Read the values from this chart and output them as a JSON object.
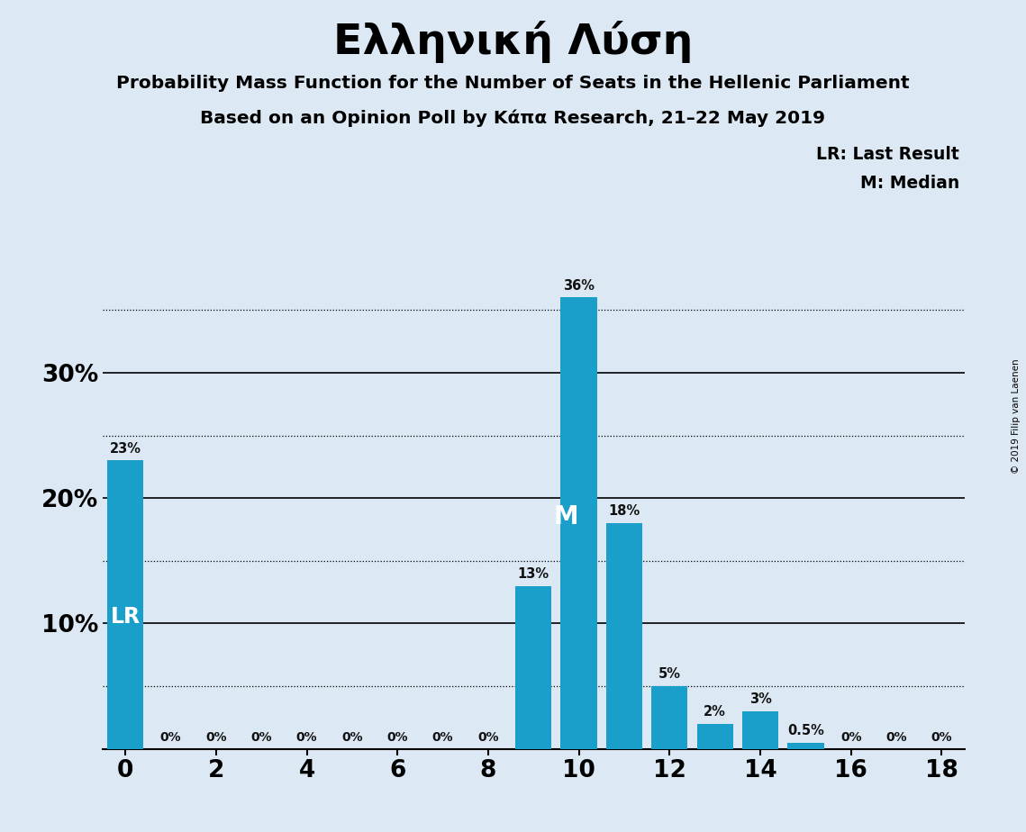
{
  "title": "Ελληνική Λύση",
  "subtitle1": "Probability Mass Function for the Number of Seats in the Hellenic Parliament",
  "subtitle2": "Based on an Opinion Poll by Κάπα Research, 21–22 May 2019",
  "copyright": "© 2019 Filip van Laenen",
  "seats": [
    0,
    1,
    2,
    3,
    4,
    5,
    6,
    7,
    8,
    9,
    10,
    11,
    12,
    13,
    14,
    15,
    16,
    17,
    18
  ],
  "probabilities": [
    0.23,
    0.0,
    0.0,
    0.0,
    0.0,
    0.0,
    0.0,
    0.0,
    0.0,
    0.13,
    0.36,
    0.18,
    0.05,
    0.02,
    0.03,
    0.005,
    0.0,
    0.0,
    0.0
  ],
  "labels": [
    "23%",
    "0%",
    "0%",
    "0%",
    "0%",
    "0%",
    "0%",
    "0%",
    "0%",
    "13%",
    "36%",
    "18%",
    "5%",
    "2%",
    "3%",
    "0.5%",
    "0%",
    "0%",
    "0%"
  ],
  "bar_color": "#1a9fca",
  "background_color": "#dce9f5",
  "lr_seat": 0,
  "median_seat": 10,
  "lr_label": "LR",
  "median_label": "M",
  "legend_lr": "LR: Last Result",
  "legend_m": "M: Median",
  "solid_yticks": [
    0.1,
    0.2,
    0.3
  ],
  "dotted_yticks": [
    0.05,
    0.15,
    0.25,
    0.35
  ],
  "ylim": [
    0,
    0.385
  ],
  "xlim": [
    -0.5,
    18.5
  ]
}
